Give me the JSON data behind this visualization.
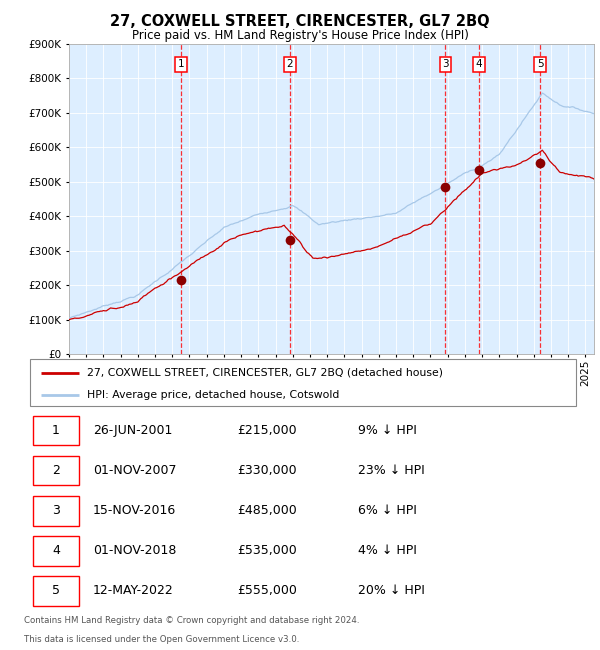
{
  "title": "27, COXWELL STREET, CIRENCESTER, GL7 2BQ",
  "subtitle": "Price paid vs. HM Land Registry's House Price Index (HPI)",
  "legend_line1": "27, COXWELL STREET, CIRENCESTER, GL7 2BQ (detached house)",
  "legend_line2": "HPI: Average price, detached house, Cotswold",
  "footer1": "Contains HM Land Registry data © Crown copyright and database right 2024.",
  "footer2": "This data is licensed under the Open Government Licence v3.0.",
  "hpi_color": "#a8c8e8",
  "price_color": "#cc0000",
  "bg_color": "#ddeeff",
  "ylim": [
    0,
    900000
  ],
  "yticks": [
    0,
    100000,
    200000,
    300000,
    400000,
    500000,
    600000,
    700000,
    800000,
    900000
  ],
  "xlim_start": 1995.0,
  "xlim_end": 2025.5,
  "transactions": [
    {
      "num": 1,
      "date": "26-JUN-2001",
      "year": 2001.5,
      "price": 215000
    },
    {
      "num": 2,
      "date": "01-NOV-2007",
      "year": 2007.83,
      "price": 330000
    },
    {
      "num": 3,
      "date": "15-NOV-2016",
      "year": 2016.87,
      "price": 485000
    },
    {
      "num": 4,
      "date": "01-NOV-2018",
      "year": 2018.83,
      "price": 535000
    },
    {
      "num": 5,
      "date": "12-MAY-2022",
      "year": 2022.37,
      "price": 555000
    }
  ],
  "table_rows": [
    [
      "1",
      "26-JUN-2001",
      "£215,000",
      "9% ↓ HPI"
    ],
    [
      "2",
      "01-NOV-2007",
      "£330,000",
      "23% ↓ HPI"
    ],
    [
      "3",
      "15-NOV-2016",
      "£485,000",
      "6% ↓ HPI"
    ],
    [
      "4",
      "01-NOV-2018",
      "£535,000",
      "4% ↓ HPI"
    ],
    [
      "5",
      "12-MAY-2022",
      "£555,000",
      "20% ↓ HPI"
    ]
  ]
}
